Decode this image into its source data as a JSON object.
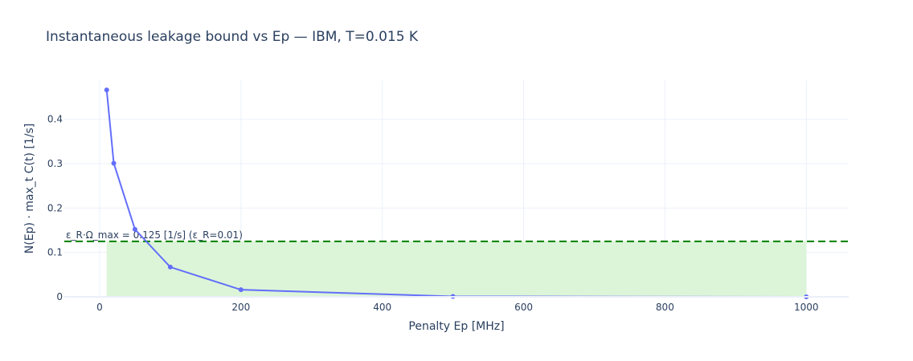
{
  "chart_data": {
    "type": "line",
    "title": "Instantaneous leakage bound vs Ep  — IBM, T=0.015 K",
    "xlabel": "Penalty Ep [MHz]",
    "ylabel": "N(Ep) · max_t C(t)  [1/s]",
    "xlim": [
      -50,
      1060
    ],
    "ylim": [
      0,
      0.488
    ],
    "x_ticks": [
      0,
      200,
      400,
      600,
      800,
      1000
    ],
    "y_ticks": [
      0,
      0.1,
      0.2,
      0.3,
      0.4
    ],
    "grid": true,
    "series": [
      {
        "x": [
          10,
          20,
          50,
          100,
          200,
          500,
          1000
        ],
        "y": [
          0.466,
          0.301,
          0.152,
          0.067,
          0.016,
          0.001,
          0.0
        ],
        "color": "#636efa"
      }
    ],
    "threshold": {
      "y": 0.125,
      "label": "ε_R·Ω_max = 0.125 [1/s] (ε_R=0.01)",
      "color": "#008000"
    },
    "shaded_region": {
      "x0": 10,
      "x1": 1000,
      "y0": 0,
      "y1": 0.125,
      "color": "#dcf5d8"
    }
  }
}
